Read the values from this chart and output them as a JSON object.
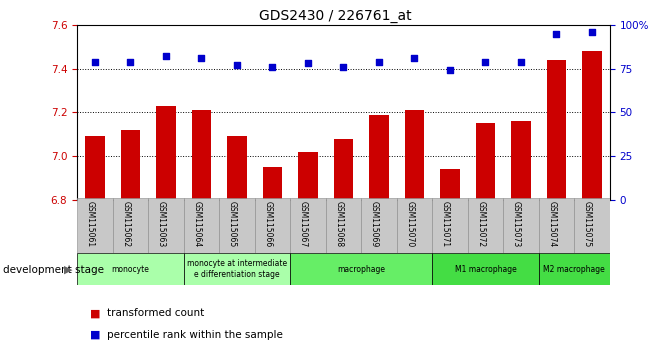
{
  "title": "GDS2430 / 226761_at",
  "samples": [
    "GSM115061",
    "GSM115062",
    "GSM115063",
    "GSM115064",
    "GSM115065",
    "GSM115066",
    "GSM115067",
    "GSM115068",
    "GSM115069",
    "GSM115070",
    "GSM115071",
    "GSM115072",
    "GSM115073",
    "GSM115074",
    "GSM115075"
  ],
  "bar_values": [
    7.09,
    7.12,
    7.23,
    7.21,
    7.09,
    6.95,
    7.02,
    7.08,
    7.19,
    7.21,
    6.94,
    7.15,
    7.16,
    7.44,
    7.48
  ],
  "percentile_values": [
    79,
    79,
    82,
    81,
    77,
    76,
    78,
    76,
    79,
    81,
    74,
    79,
    79,
    95,
    96
  ],
  "bar_color": "#cc0000",
  "percentile_color": "#0000cc",
  "ylim_left": [
    6.8,
    7.6
  ],
  "ylim_right": [
    0,
    100
  ],
  "yticks_left": [
    6.8,
    7.0,
    7.2,
    7.4,
    7.6
  ],
  "yticks_right": [
    0,
    25,
    50,
    75,
    100
  ],
  "ytick_labels_right": [
    "0",
    "25",
    "50",
    "75",
    "100%"
  ],
  "grid_values": [
    7.0,
    7.2,
    7.4
  ],
  "stage_groups": [
    {
      "label": "monocyte",
      "start": 0,
      "end": 2,
      "color": "#aaffaa"
    },
    {
      "label": "monocyte at intermediate\ne differentiation stage",
      "start": 3,
      "end": 5,
      "color": "#aaffaa"
    },
    {
      "label": "macrophage",
      "start": 6,
      "end": 9,
      "color": "#66ee66"
    },
    {
      "label": "M1 macrophage",
      "start": 10,
      "end": 12,
      "color": "#44dd44"
    },
    {
      "label": "M2 macrophage",
      "start": 13,
      "end": 14,
      "color": "#44dd44"
    }
  ],
  "development_stage_label": "development stage",
  "legend_bar_label": "transformed count",
  "legend_pct_label": "percentile rank within the sample",
  "tick_label_bg": "#c8c8c8"
}
